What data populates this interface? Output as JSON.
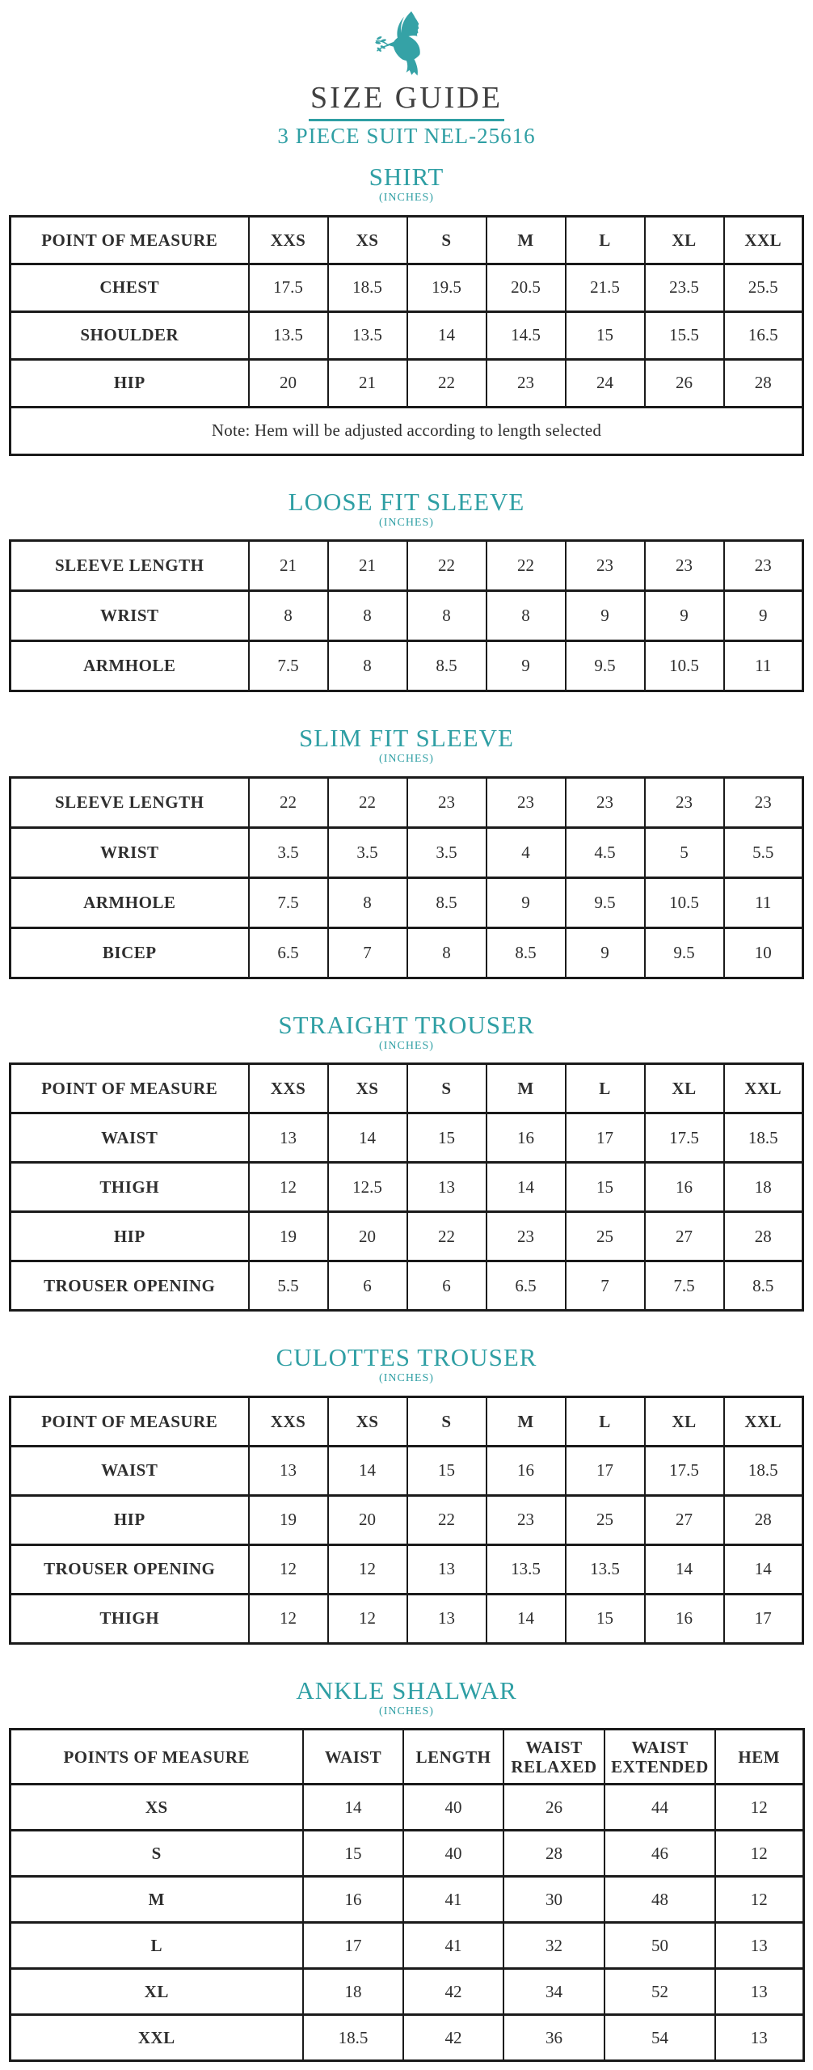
{
  "header": {
    "logo": "dove-icon",
    "title": "SIZE GUIDE",
    "subtitle": "3 PIECE SUIT NEL-25616"
  },
  "colors": {
    "accent": "#2f9fa4",
    "title_text": "#414141",
    "table_text": "#2e2e2e",
    "border": "#1a1a1a"
  },
  "sections": [
    {
      "id": "shirt",
      "title": "SHIRT",
      "unit": "(INCHES)",
      "layout": "size-columns",
      "table_class": "t-shirt",
      "column_header": {
        "label": "POINT OF MEASURE",
        "sizes": [
          "XXS",
          "XS",
          "S",
          "M",
          "L",
          "XL",
          "XXL"
        ]
      },
      "rows": [
        {
          "label": "CHEST",
          "values": [
            "17.5",
            "18.5",
            "19.5",
            "20.5",
            "21.5",
            "23.5",
            "25.5"
          ]
        },
        {
          "label": "SHOULDER",
          "values": [
            "13.5",
            "13.5",
            "14",
            "14.5",
            "15",
            "15.5",
            "16.5"
          ]
        },
        {
          "label": "HIP",
          "values": [
            "20",
            "21",
            "22",
            "23",
            "24",
            "26",
            "28"
          ]
        }
      ],
      "note": "Note: Hem will be adjusted according to length selected"
    },
    {
      "id": "loose-fit-sleeve",
      "title": "LOOSE FIT SLEEVE",
      "unit": "(INCHES)",
      "layout": "size-columns",
      "table_class": "t-sleeve",
      "column_header": null,
      "rows": [
        {
          "label": "SLEEVE LENGTH",
          "values": [
            "21",
            "21",
            "22",
            "22",
            "23",
            "23",
            "23"
          ]
        },
        {
          "label": "WRIST",
          "values": [
            "8",
            "8",
            "8",
            "8",
            "9",
            "9",
            "9"
          ]
        },
        {
          "label": "ARMHOLE",
          "values": [
            "7.5",
            "8",
            "8.5",
            "9",
            "9.5",
            "10.5",
            "11"
          ]
        }
      ],
      "note": null
    },
    {
      "id": "slim-fit-sleeve",
      "title": "SLIM FIT SLEEVE",
      "unit": "(INCHES)",
      "layout": "size-columns",
      "table_class": "t-sleeve",
      "column_header": null,
      "rows": [
        {
          "label": "SLEEVE LENGTH",
          "values": [
            "22",
            "22",
            "23",
            "23",
            "23",
            "23",
            "23"
          ]
        },
        {
          "label": "WRIST",
          "values": [
            "3.5",
            "3.5",
            "3.5",
            "4",
            "4.5",
            "5",
            "5.5"
          ]
        },
        {
          "label": "ARMHOLE",
          "values": [
            "7.5",
            "8",
            "8.5",
            "9",
            "9.5",
            "10.5",
            "11"
          ]
        },
        {
          "label": "BICEP",
          "values": [
            "6.5",
            "7",
            "8",
            "8.5",
            "9",
            "9.5",
            "10"
          ]
        }
      ],
      "note": null
    },
    {
      "id": "straight-trouser",
      "title": "STRAIGHT TROUSER",
      "unit": "(INCHES)",
      "layout": "size-columns",
      "table_class": "t-trouser",
      "column_header": {
        "label": "POINT OF MEASURE",
        "sizes": [
          "XXS",
          "XS",
          "S",
          "M",
          "L",
          "XL",
          "XXL"
        ]
      },
      "rows": [
        {
          "label": "WAIST",
          "values": [
            "13",
            "14",
            "15",
            "16",
            "17",
            "17.5",
            "18.5"
          ]
        },
        {
          "label": "THIGH",
          "values": [
            "12",
            "12.5",
            "13",
            "14",
            "15",
            "16",
            "18"
          ]
        },
        {
          "label": "HIP",
          "values": [
            "19",
            "20",
            "22",
            "23",
            "25",
            "27",
            "28"
          ]
        },
        {
          "label": "TROUSER OPENING",
          "values": [
            "5.5",
            "6",
            "6",
            "6.5",
            "7",
            "7.5",
            "8.5"
          ]
        }
      ],
      "note": null
    },
    {
      "id": "culottes-trouser",
      "title": "CULOTTES TROUSER",
      "unit": "(INCHES)",
      "layout": "size-columns",
      "table_class": "t-trouser",
      "column_header": {
        "label": "POINT OF MEASURE",
        "sizes": [
          "XXS",
          "XS",
          "S",
          "M",
          "L",
          "XL",
          "XXL"
        ]
      },
      "rows": [
        {
          "label": "WAIST",
          "values": [
            "13",
            "14",
            "15",
            "16",
            "17",
            "17.5",
            "18.5"
          ]
        },
        {
          "label": "HIP",
          "values": [
            "19",
            "20",
            "22",
            "23",
            "25",
            "27",
            "28"
          ]
        },
        {
          "label": "TROUSER OPENING",
          "values": [
            "12",
            "12",
            "13",
            "13.5",
            "13.5",
            "14",
            "14"
          ]
        },
        {
          "label": "THIGH",
          "values": [
            "12",
            "12",
            "13",
            "14",
            "15",
            "16",
            "17"
          ]
        }
      ],
      "note": null
    },
    {
      "id": "ankle-shalwar",
      "title": "ANKLE SHALWAR",
      "unit": "(INCHES)",
      "layout": "measure-columns",
      "table_class": "t-ankle",
      "columns": [
        "POINTS OF MEASURE",
        "WAIST",
        "LENGTH",
        "WAIST RELAXED",
        "WAIST EXTENDED",
        "HEM"
      ],
      "rows": [
        {
          "label": "XS",
          "values": [
            "14",
            "40",
            "26",
            "44",
            "12"
          ]
        },
        {
          "label": "S",
          "values": [
            "15",
            "40",
            "28",
            "46",
            "12"
          ]
        },
        {
          "label": "M",
          "values": [
            "16",
            "41",
            "30",
            "48",
            "12"
          ]
        },
        {
          "label": "L",
          "values": [
            "17",
            "41",
            "32",
            "50",
            "13"
          ]
        },
        {
          "label": "XL",
          "values": [
            "18",
            "42",
            "34",
            "52",
            "13"
          ]
        },
        {
          "label": "XXL",
          "values": [
            "18.5",
            "42",
            "36",
            "54",
            "13"
          ]
        }
      ],
      "note": null
    }
  ]
}
